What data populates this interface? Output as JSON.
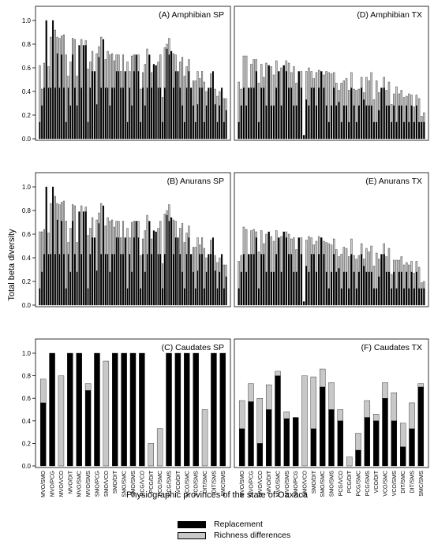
{
  "figure": {
    "ylabel": "Total beta diversity",
    "xlabel": "Physiographic provinces of the state of Oaxaca",
    "legend": [
      {
        "label": "Replacement",
        "color": "#000000"
      },
      {
        "label": "Richness differences",
        "color": "#c8c8c8"
      }
    ],
    "colors": {
      "replacement": "#000000",
      "richness": "#c8c8c8"
    }
  },
  "chart_data": [
    {
      "type": "bar",
      "stacked": true,
      "title": "(A) Amphibian SP",
      "ylim": [
        0,
        1.0
      ],
      "yticks": [
        "0.0",
        "0.2",
        "0.4",
        "0.6",
        "0.8",
        "1.0"
      ],
      "category_labels_legible": false,
      "series": [
        {
          "name": "Replacement",
          "values": [
            0.14,
            0.28,
            0.43,
            1.0,
            0.43,
            0.43,
            1.0,
            0.43,
            0.72,
            0.43,
            0.71,
            0.43,
            0.14,
            0.43,
            0.28,
            0.71,
            0.43,
            0.28,
            0.79,
            0.43,
            0.79,
            0.79,
            0.14,
            0.43,
            0.57,
            0.57,
            0.29,
            0.69,
            0.43,
            0.84,
            0.43,
            0.43,
            0.28,
            0.43,
            0.43,
            0.57,
            0.57,
            0.43,
            0.43,
            0.57,
            0.14,
            0.43,
            0.28,
            0.57,
            0.71,
            0.57,
            0.14,
            0.43,
            0.28,
            0.43,
            0.71,
            0.43,
            0.63,
            0.62,
            0.43,
            0.43,
            0.14,
            0.43,
            0.76,
            0.71,
            0.74,
            0.43,
            0.57,
            0.57,
            0.43,
            0.28,
            0.14,
            0.43,
            0.57,
            0.43,
            0.28,
            0.14,
            0.29,
            0.43,
            0.43,
            0.14,
            0.28,
            0.43,
            0.43,
            0.57,
            0.29,
            0.14,
            0.28,
            0.43,
            0.14,
            0.24
          ]
        },
        {
          "name": "Richness differences",
          "values": [
            0.48,
            0.14,
            0.21,
            0.0,
            0.18,
            0.43,
            0.0,
            0.49,
            0.14,
            0.42,
            0.16,
            0.45,
            0.57,
            0.1,
            0.37,
            0.14,
            0.41,
            0.25,
            0.0,
            0.41,
            0.0,
            0.04,
            0.45,
            0.22,
            0.17,
            0.0,
            0.43,
            0.09,
            0.43,
            0.0,
            0.24,
            0.31,
            0.43,
            0.29,
            0.23,
            0.14,
            0.14,
            0.14,
            0.28,
            0.0,
            0.51,
            0.14,
            0.42,
            0.14,
            0.0,
            0.14,
            0.28,
            0.13,
            0.35,
            0.33,
            0.0,
            0.13,
            0.0,
            0.0,
            0.22,
            0.28,
            0.21,
            0.34,
            0.04,
            0.14,
            0.0,
            0.29,
            0.14,
            0.0,
            0.22,
            0.41,
            0.39,
            0.18,
            0.1,
            0.0,
            0.21,
            0.35,
            0.28,
            0.08,
            0.14,
            0.34,
            0.12,
            0.0,
            0.12,
            0.0,
            0.13,
            0.22,
            0.12,
            0.0,
            0.2,
            0.1
          ]
        }
      ]
    },
    {
      "type": "bar",
      "stacked": true,
      "title": "(D) Amphibian TX",
      "ylim": [
        0,
        1.0
      ],
      "category_labels_legible": false,
      "series": [
        {
          "name": "Replacement",
          "values": [
            0.14,
            0.28,
            0.43,
            0.28,
            0.43,
            0.43,
            0.43,
            0.57,
            0.14,
            0.43,
            0.43,
            0.28,
            0.62,
            0.28,
            0.28,
            0.43,
            0.57,
            0.28,
            0.62,
            0.57,
            0.43,
            0.43,
            0.28,
            0.28,
            0.57,
            0.43,
            0.03,
            0.33,
            0.28,
            0.43,
            0.43,
            0.28,
            0.43,
            0.57,
            0.43,
            0.28,
            0.14,
            0.28,
            0.43,
            0.28,
            0.31,
            0.14,
            0.28,
            0.28,
            0.14,
            0.43,
            0.28,
            0.14,
            0.28,
            0.43,
            0.33,
            0.28,
            0.28,
            0.28,
            0.14,
            0.14,
            0.24,
            0.43,
            0.43,
            0.28,
            0.28,
            0.14,
            0.28,
            0.14,
            0.28,
            0.28,
            0.14,
            0.28,
            0.14,
            0.28,
            0.14,
            0.28,
            0.14,
            0.14,
            0.14
          ]
        },
        {
          "name": "Richness differences",
          "values": [
            0.34,
            0.14,
            0.27,
            0.42,
            0.0,
            0.2,
            0.24,
            0.1,
            0.33,
            0.2,
            0.09,
            0.36,
            0.0,
            0.33,
            0.26,
            0.23,
            0.0,
            0.32,
            0.0,
            0.09,
            0.21,
            0.13,
            0.33,
            0.19,
            0.0,
            0.14,
            0.0,
            0.24,
            0.32,
            0.14,
            0.08,
            0.28,
            0.15,
            0.0,
            0.11,
            0.29,
            0.42,
            0.27,
            0.13,
            0.19,
            0.1,
            0.33,
            0.21,
            0.23,
            0.27,
            0.13,
            0.14,
            0.27,
            0.14,
            0.09,
            0.06,
            0.24,
            0.21,
            0.28,
            0.19,
            0.35,
            0.15,
            0.0,
            0.09,
            0.13,
            0.2,
            0.15,
            0.1,
            0.3,
            0.1,
            0.13,
            0.21,
            0.08,
            0.24,
            0.09,
            0.13,
            0.09,
            0.2,
            0.05,
            0.08
          ]
        }
      ]
    },
    {
      "type": "bar",
      "stacked": true,
      "title": "(B) Anurans SP",
      "ylim": [
        0,
        1.0
      ],
      "yticks": [
        "0.0",
        "0.2",
        "0.4",
        "0.6",
        "0.8",
        "1.0"
      ],
      "category_labels_legible": false,
      "series": [
        {
          "name": "Replacement",
          "values": [
            0.14,
            0.28,
            0.43,
            1.0,
            0.43,
            0.43,
            1.0,
            0.43,
            0.72,
            0.43,
            0.71,
            0.43,
            0.14,
            0.43,
            0.28,
            0.71,
            0.43,
            0.28,
            0.79,
            0.43,
            0.79,
            0.79,
            0.14,
            0.43,
            0.57,
            0.57,
            0.29,
            0.69,
            0.43,
            0.84,
            0.43,
            0.43,
            0.28,
            0.43,
            0.43,
            0.57,
            0.57,
            0.43,
            0.43,
            0.57,
            0.14,
            0.43,
            0.28,
            0.57,
            0.71,
            0.57,
            0.14,
            0.43,
            0.28,
            0.43,
            0.71,
            0.43,
            0.63,
            0.62,
            0.43,
            0.43,
            0.14,
            0.43,
            0.76,
            0.71,
            0.74,
            0.43,
            0.57,
            0.57,
            0.43,
            0.28,
            0.14,
            0.43,
            0.57,
            0.43,
            0.28,
            0.14,
            0.29,
            0.43,
            0.43,
            0.14,
            0.28,
            0.43,
            0.43,
            0.57,
            0.29,
            0.14,
            0.28,
            0.43,
            0.14,
            0.24
          ]
        },
        {
          "name": "Richness differences",
          "values": [
            0.48,
            0.34,
            0.21,
            0.0,
            0.18,
            0.43,
            0.0,
            0.49,
            0.14,
            0.42,
            0.16,
            0.45,
            0.57,
            0.1,
            0.37,
            0.14,
            0.41,
            0.25,
            0.0,
            0.41,
            0.0,
            0.04,
            0.45,
            0.22,
            0.17,
            0.0,
            0.43,
            0.09,
            0.43,
            0.0,
            0.24,
            0.31,
            0.43,
            0.29,
            0.23,
            0.14,
            0.14,
            0.14,
            0.28,
            0.0,
            0.51,
            0.14,
            0.42,
            0.14,
            0.0,
            0.14,
            0.28,
            0.13,
            0.35,
            0.33,
            0.0,
            0.13,
            0.0,
            0.0,
            0.22,
            0.28,
            0.21,
            0.34,
            0.04,
            0.14,
            0.0,
            0.29,
            0.14,
            0.0,
            0.22,
            0.41,
            0.39,
            0.18,
            0.1,
            0.0,
            0.21,
            0.35,
            0.28,
            0.08,
            0.14,
            0.34,
            0.12,
            0.0,
            0.12,
            0.0,
            0.13,
            0.22,
            0.12,
            0.0,
            0.2,
            0.1
          ]
        }
      ]
    },
    {
      "type": "bar",
      "stacked": true,
      "title": "(E) Anurans TX",
      "ylim": [
        0,
        1.0
      ],
      "category_labels_legible": false,
      "series": [
        {
          "name": "Replacement",
          "values": [
            0.14,
            0.28,
            0.43,
            0.28,
            0.43,
            0.43,
            0.43,
            0.57,
            0.14,
            0.43,
            0.43,
            0.28,
            0.62,
            0.28,
            0.28,
            0.43,
            0.57,
            0.28,
            0.62,
            0.57,
            0.43,
            0.43,
            0.28,
            0.28,
            0.57,
            0.43,
            0.03,
            0.33,
            0.28,
            0.43,
            0.43,
            0.28,
            0.43,
            0.57,
            0.43,
            0.28,
            0.14,
            0.28,
            0.43,
            0.28,
            0.31,
            0.14,
            0.28,
            0.28,
            0.14,
            0.43,
            0.28,
            0.14,
            0.28,
            0.43,
            0.33,
            0.28,
            0.28,
            0.28,
            0.14,
            0.14,
            0.24,
            0.43,
            0.43,
            0.28,
            0.28,
            0.14,
            0.28,
            0.14,
            0.28,
            0.28,
            0.14,
            0.28,
            0.14,
            0.28,
            0.14,
            0.28,
            0.14,
            0.14,
            0.14
          ]
        },
        {
          "name": "Richness differences",
          "values": [
            0.23,
            0.14,
            0.23,
            0.36,
            0.0,
            0.2,
            0.21,
            0.05,
            0.31,
            0.2,
            0.09,
            0.32,
            0.0,
            0.3,
            0.26,
            0.2,
            0.0,
            0.3,
            0.0,
            0.05,
            0.17,
            0.13,
            0.29,
            0.19,
            0.0,
            0.14,
            0.0,
            0.22,
            0.3,
            0.14,
            0.08,
            0.26,
            0.15,
            0.0,
            0.11,
            0.25,
            0.38,
            0.23,
            0.13,
            0.19,
            0.1,
            0.29,
            0.21,
            0.2,
            0.27,
            0.13,
            0.14,
            0.25,
            0.14,
            0.09,
            0.06,
            0.2,
            0.17,
            0.22,
            0.19,
            0.3,
            0.15,
            0.0,
            0.09,
            0.13,
            0.2,
            0.12,
            0.1,
            0.24,
            0.1,
            0.13,
            0.2,
            0.08,
            0.2,
            0.09,
            0.13,
            0.09,
            0.18,
            0.05,
            0.06
          ]
        }
      ]
    },
    {
      "type": "bar",
      "stacked": true,
      "title": "(C) Caudates SP",
      "ylim": [
        0,
        1.0
      ],
      "yticks": [
        "0.0",
        "0.2",
        "0.4",
        "0.6",
        "0.8",
        "1.0"
      ],
      "categories": [
        "MVO/SMO",
        "MVO/PCG",
        "MVO/VCO",
        "MVO/DIT",
        "MVO/SMC",
        "MVO/SMS",
        "SMO/PCG",
        "SMO/VCO",
        "SMO/DIT",
        "SMO/SMC",
        "SMO/SMS",
        "PCG/VCO",
        "PCG/DIT",
        "PCG/SMC",
        "PCG/SMS",
        "VCO/DIT",
        "VCO/SMC",
        "VCO/SMS",
        "DIT/SMC",
        "DIT/SMS",
        "SMC/SMS"
      ],
      "series": [
        {
          "name": "Replacement",
          "values": [
            0.56,
            1.0,
            0.0,
            1.0,
            1.0,
            0.67,
            1.0,
            0.0,
            1.0,
            1.0,
            1.0,
            1.0,
            0.0,
            0.0,
            1.0,
            1.0,
            1.0,
            1.0,
            0.0,
            1.0,
            1.0
          ]
        },
        {
          "name": "Richness differences",
          "values": [
            0.21,
            0.0,
            0.8,
            0.0,
            0.0,
            0.06,
            0.0,
            0.93,
            0.0,
            0.0,
            0.0,
            0.0,
            0.2,
            0.33,
            0.0,
            0.0,
            0.0,
            0.0,
            0.5,
            0.0,
            0.0
          ]
        }
      ]
    },
    {
      "type": "bar",
      "stacked": true,
      "title": "(F) Caudates TX",
      "ylim": [
        0,
        1.0
      ],
      "categories": [
        "MVO/SMO",
        "MVO/PCG",
        "MVO/VCO",
        "MVO/DIT",
        "MVO/SMC",
        "MVO/SMS",
        "SMO/PCG",
        "SMO/VCO",
        "SMO/DIT",
        "SMO/SMC",
        "SMO/SMS",
        "PCG/VCO",
        "PCG/DIT",
        "PCG/SMC",
        "PCG/SMS",
        "VCO/DIT",
        "VCO/SMC",
        "VCO/SMS",
        "DIT/SMC",
        "DIT/SMS",
        "SMC/SMS"
      ],
      "series": [
        {
          "name": "Replacement",
          "values": [
            0.33,
            0.57,
            0.2,
            0.5,
            0.8,
            0.42,
            0.43,
            0.0,
            0.33,
            0.7,
            0.5,
            0.4,
            0.0,
            0.14,
            0.43,
            0.4,
            0.6,
            0.4,
            0.17,
            0.33,
            0.7
          ]
        },
        {
          "name": "Richness differences",
          "values": [
            0.25,
            0.16,
            0.4,
            0.22,
            0.04,
            0.06,
            0.0,
            0.8,
            0.46,
            0.16,
            0.24,
            0.1,
            0.08,
            0.15,
            0.15,
            0.06,
            0.14,
            0.25,
            0.21,
            0.23,
            0.03
          ]
        }
      ]
    }
  ]
}
